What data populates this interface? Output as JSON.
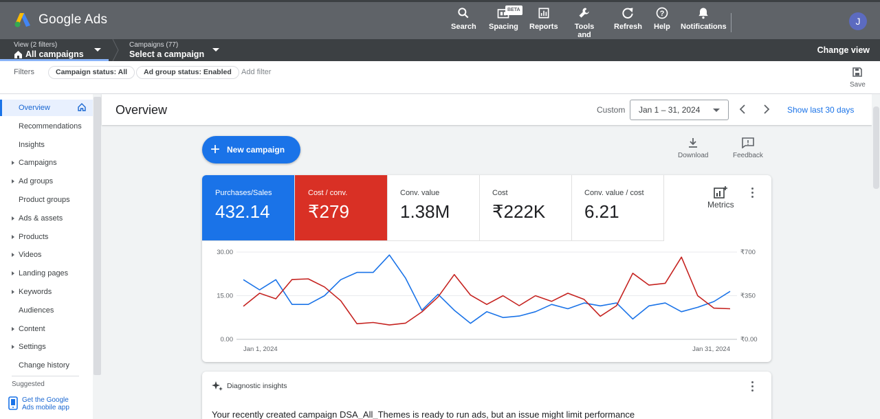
{
  "app": {
    "name": "Google Ads",
    "avatar_initial": "J"
  },
  "toolbar": [
    {
      "id": "search",
      "label": "Search",
      "icon": "search-icon"
    },
    {
      "id": "spacing",
      "label": "Spacing",
      "icon": "spacing-icon",
      "badge": "BETA"
    },
    {
      "id": "reports",
      "label": "Reports",
      "icon": "reports-icon"
    },
    {
      "id": "tools",
      "label": "Tools and settings",
      "icon": "wrench-icon"
    },
    {
      "id": "refresh",
      "label": "Refresh",
      "icon": "refresh-icon"
    },
    {
      "id": "help",
      "label": "Help",
      "icon": "help-icon"
    },
    {
      "id": "notifications",
      "label": "Notifications",
      "icon": "bell-icon"
    }
  ],
  "subbar": {
    "view_small": "View (2 filters)",
    "view_big": "All campaigns",
    "campaigns_small": "Campaigns (77)",
    "campaigns_big": "Select a campaign",
    "change_view": "Change view"
  },
  "filters": {
    "label": "Filters",
    "chips": [
      "Campaign status: All",
      "Ad group status: Enabled"
    ],
    "add": "Add filter",
    "save": "Save"
  },
  "sidebar": {
    "items": [
      {
        "label": "Overview",
        "active": true,
        "arrow": false
      },
      {
        "label": "Recommendations",
        "active": false,
        "arrow": false
      },
      {
        "label": "Insights",
        "active": false,
        "arrow": false
      },
      {
        "label": "Campaigns",
        "active": false,
        "arrow": true
      },
      {
        "label": "Ad groups",
        "active": false,
        "arrow": true
      },
      {
        "label": "Product groups",
        "active": false,
        "arrow": false
      },
      {
        "label": "Ads & assets",
        "active": false,
        "arrow": true
      },
      {
        "label": "Products",
        "active": false,
        "arrow": true
      },
      {
        "label": "Videos",
        "active": false,
        "arrow": true
      },
      {
        "label": "Landing pages",
        "active": false,
        "arrow": true
      },
      {
        "label": "Keywords",
        "active": false,
        "arrow": true
      },
      {
        "label": "Audiences",
        "active": false,
        "arrow": false
      },
      {
        "label": "Content",
        "active": false,
        "arrow": true
      },
      {
        "label": "Settings",
        "active": false,
        "arrow": true
      },
      {
        "label": "Change history",
        "active": false,
        "arrow": false
      }
    ],
    "suggested": "Suggested",
    "mobile_line1": "Get the Google",
    "mobile_line2": "Ads mobile app"
  },
  "overview": {
    "title": "Overview",
    "custom": "Custom",
    "date_range": "Jan 1 – 31, 2024",
    "show_last": "Show last 30 days",
    "new_campaign": "New campaign",
    "download": "Download",
    "feedback": "Feedback"
  },
  "tiles": [
    {
      "label": "Purchases/Sales",
      "value": "432.14",
      "style": "blue"
    },
    {
      "label": "Cost / conv.",
      "value": "₹279",
      "style": "red"
    },
    {
      "label": "Conv. value",
      "value": "1.38M",
      "style": "plain"
    },
    {
      "label": "Cost",
      "value": "₹222K",
      "style": "plain"
    },
    {
      "label": "Conv. value / cost",
      "value": "6.21",
      "style": "plain"
    }
  ],
  "metrics_label": "Metrics",
  "colors": {
    "blue": "#1a73e8",
    "red": "#c5221f",
    "accent": "#1a73e8"
  },
  "chart_data": {
    "type": "line",
    "x_start_label": "Jan 1, 2024",
    "x_end_label": "Jan 31, 2024",
    "y_left_ticks": [
      "30.00",
      "15.00",
      "0.00"
    ],
    "y_right_ticks": [
      "₹700",
      "₹350",
      "₹0.00"
    ],
    "ylim_left": [
      0,
      30
    ],
    "ylim_right": [
      0,
      700
    ],
    "grid": true,
    "series": [
      {
        "axis": "left",
        "color": "#1a73e8",
        "values": [
          20.5,
          17,
          20.5,
          12,
          12,
          15,
          20.5,
          23,
          23,
          29,
          21,
          10,
          15.5,
          10,
          5.5,
          9.5,
          7.5,
          8,
          9.5,
          12,
          10.5,
          12.5,
          11.5,
          12.5,
          7,
          11.5,
          12.5,
          9.5,
          11,
          13,
          16.5
        ]
      },
      {
        "axis": "right",
        "color": "#c5221f",
        "values": [
          265,
          370,
          325,
          480,
          485,
          420,
          310,
          125,
          135,
          115,
          130,
          220,
          340,
          520,
          355,
          280,
          350,
          270,
          350,
          305,
          370,
          320,
          185,
          270,
          530,
          435,
          450,
          660,
          350,
          250,
          245
        ]
      }
    ]
  },
  "diagnostic": {
    "title": "Diagnostic insights",
    "message": "Your recently created campaign DSA_All_Themes is ready to run ads, but an issue might limit performance"
  }
}
